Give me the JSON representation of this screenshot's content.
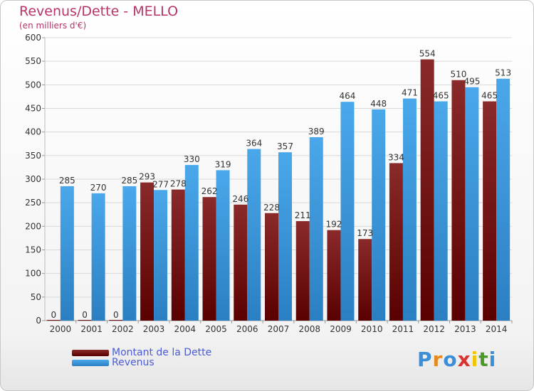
{
  "chart_data": {
    "type": "bar",
    "title": "Revenus/Dette - MELLO",
    "subtitle": "(en milliers d'€)",
    "categories": [
      "2000",
      "2001",
      "2002",
      "2003",
      "2004",
      "2005",
      "2006",
      "2007",
      "2008",
      "2009",
      "2010",
      "2011",
      "2012",
      "2013",
      "2014"
    ],
    "series": [
      {
        "name": "Montant de la Dette",
        "color": "#6e1010",
        "values": [
          0,
          0,
          0,
          293,
          278,
          262,
          246,
          228,
          211,
          192,
          173,
          334,
          554,
          510,
          465
        ]
      },
      {
        "name": "Revenus",
        "color": "#3b9ee0",
        "values": [
          285,
          270,
          285,
          277,
          330,
          319,
          364,
          357,
          389,
          464,
          448,
          471,
          465,
          495,
          513
        ]
      }
    ],
    "ylim": [
      0,
      600
    ],
    "yticks": [
      0,
      50,
      100,
      150,
      200,
      250,
      300,
      350,
      400,
      450,
      500,
      550,
      600
    ],
    "grid": true,
    "legend_position": "bottom-left"
  },
  "legend": {
    "debt_label": "Montant de la Dette",
    "revenue_label": "Revenus"
  },
  "logo": {
    "letters": [
      "P",
      "r",
      "o",
      "x",
      "i",
      "t",
      "i"
    ],
    "colors": [
      "#3b8fd8",
      "#e58a1f",
      "#3b8fd8",
      "#d8332e",
      "#f2c400",
      "#4a9a2a",
      "#3b8fd8"
    ]
  }
}
